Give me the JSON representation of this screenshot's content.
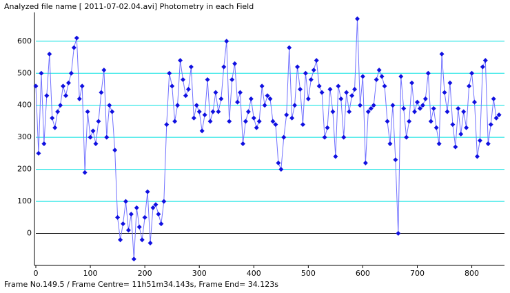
{
  "chart_data": {
    "type": "line",
    "title": "Analyzed file name [ 2011-07-02.04.avi]   Photometry in each Field",
    "footer": "Frame No.149.5 / Frame Centre= 11h51m34.143s,  Frame End= 34.123s",
    "x": [
      0,
      5,
      10,
      15,
      20,
      25,
      30,
      35,
      40,
      45,
      50,
      55,
      60,
      65,
      70,
      75,
      80,
      85,
      90,
      95,
      100,
      105,
      110,
      115,
      120,
      125,
      130,
      135,
      140,
      145,
      150,
      155,
      160,
      165,
      170,
      175,
      180,
      185,
      190,
      195,
      200,
      205,
      210,
      215,
      220,
      225,
      230,
      235,
      240,
      245,
      250,
      255,
      260,
      265,
      270,
      275,
      280,
      285,
      290,
      295,
      300,
      305,
      310,
      315,
      320,
      325,
      330,
      335,
      340,
      345,
      350,
      355,
      360,
      365,
      370,
      375,
      380,
      385,
      390,
      395,
      400,
      405,
      410,
      415,
      420,
      425,
      430,
      435,
      440,
      445,
      450,
      455,
      460,
      465,
      470,
      475,
      480,
      485,
      490,
      495,
      500,
      505,
      510,
      515,
      520,
      525,
      530,
      535,
      540,
      545,
      550,
      555,
      560,
      565,
      570,
      575,
      580,
      585,
      590,
      595,
      600,
      605,
      610,
      615,
      620,
      625,
      630,
      635,
      640,
      645,
      650,
      655,
      660,
      665,
      670,
      675,
      680,
      685,
      690,
      695,
      700,
      705,
      710,
      715,
      720,
      725,
      730,
      735,
      740,
      745,
      750,
      755,
      760,
      765,
      770,
      775,
      780,
      785,
      790,
      795,
      800,
      805,
      810,
      815,
      820,
      825,
      830,
      835,
      840,
      845,
      850
    ],
    "values": [
      460,
      250,
      500,
      280,
      430,
      560,
      360,
      330,
      380,
      400,
      460,
      430,
      470,
      500,
      580,
      610,
      420,
      460,
      190,
      380,
      300,
      320,
      280,
      350,
      440,
      510,
      300,
      400,
      380,
      260,
      50,
      -20,
      30,
      100,
      10,
      60,
      -80,
      80,
      20,
      -20,
      50,
      130,
      -30,
      80,
      90,
      60,
      30,
      100,
      340,
      500,
      460,
      350,
      400,
      540,
      480,
      430,
      450,
      520,
      360,
      400,
      380,
      320,
      370,
      480,
      350,
      380,
      440,
      380,
      420,
      520,
      600,
      350,
      480,
      530,
      410,
      440,
      280,
      350,
      380,
      420,
      360,
      330,
      350,
      460,
      400,
      430,
      420,
      350,
      340,
      220,
      200,
      300,
      370,
      580,
      360,
      400,
      520,
      450,
      340,
      500,
      420,
      480,
      510,
      540,
      460,
      440,
      300,
      330,
      450,
      380,
      240,
      460,
      420,
      300,
      440,
      380,
      430,
      450,
      670,
      400,
      490,
      220,
      380,
      390,
      400,
      480,
      510,
      490,
      460,
      350,
      280,
      400,
      230,
      0,
      490,
      390,
      300,
      350,
      470,
      380,
      410,
      390,
      400,
      420,
      500,
      350,
      390,
      330,
      280,
      560,
      440,
      380,
      470,
      340,
      270,
      390,
      310,
      380,
      330,
      460,
      500,
      410,
      240,
      290,
      520,
      540,
      280,
      340,
      420,
      360,
      370
    ],
    "line_color": "#7070ff",
    "marker_color": "#1010e0",
    "xlim": [
      0,
      860
    ],
    "ylim": [
      -100,
      690
    ],
    "xticks": [
      0,
      100,
      200,
      300,
      400,
      500,
      600,
      700,
      800
    ],
    "yticks": [
      0,
      100,
      200,
      300,
      400,
      500,
      600
    ],
    "grid": true,
    "grid_color": "#00e0e0",
    "zero_line_color": "#000000"
  }
}
